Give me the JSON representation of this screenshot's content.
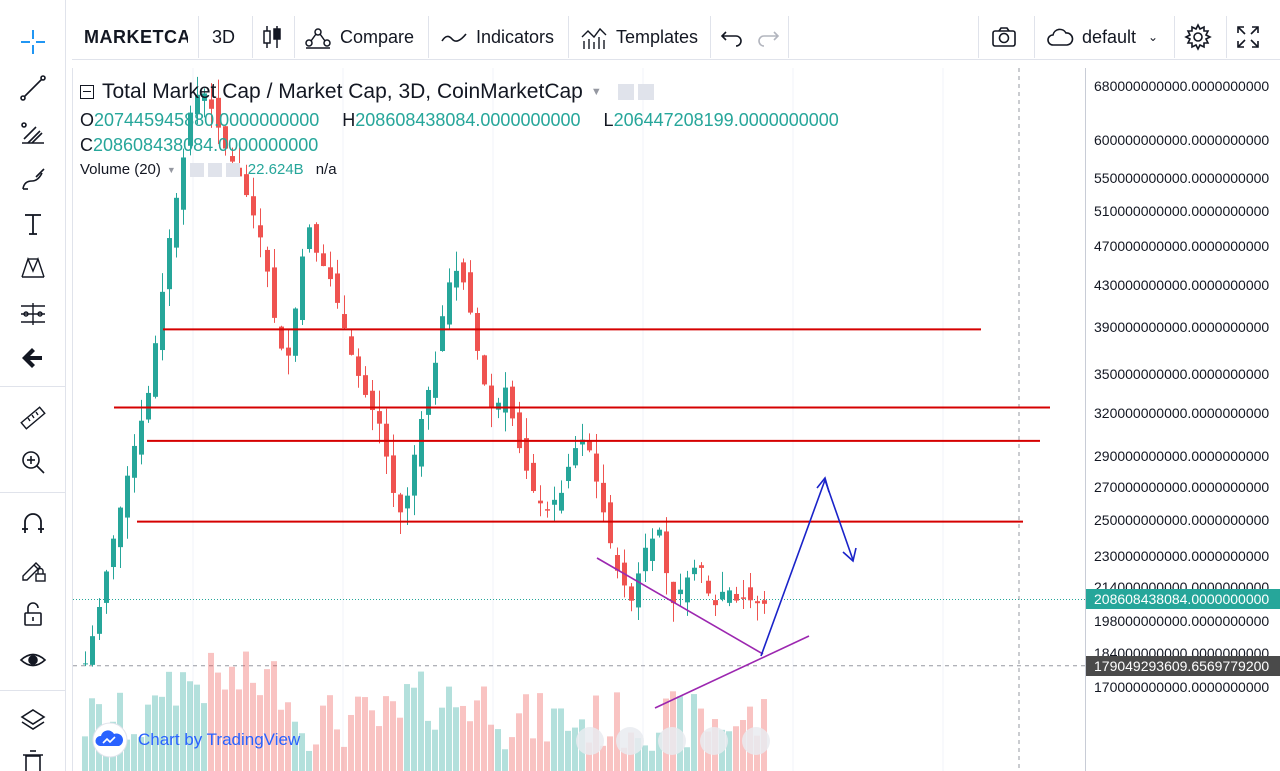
{
  "top_toolbar": {
    "symbol": "MARKETCAP",
    "interval": "3D",
    "compare_label": "Compare",
    "indicators_label": "Indicators",
    "templates_label": "Templates",
    "layout_label": "default"
  },
  "left_toolbar": {
    "tools": [
      "crosshair-icon",
      "trend-line-icon",
      "fib-icon",
      "brush-icon",
      "text-icon",
      "pattern-icon",
      "measure-lines-icon",
      "back-arrow-icon",
      "ruler-icon",
      "zoom-in-icon",
      "magnet-icon",
      "lock-drawing-icon",
      "unlock-icon",
      "eye-icon",
      "layers-icon",
      "trash-icon"
    ]
  },
  "legend": {
    "title": "Total Market Cap / Market Cap, 3D, CoinMarketCap",
    "open_key": "O",
    "open": "207445945880.0000000000",
    "high_key": "H",
    "high": "208608438084.0000000000",
    "low_key": "L",
    "low": "206447208199.0000000000",
    "close_key": "C",
    "close": "208608438084.0000000000",
    "volume_label": "Volume (20)",
    "volume_value": "22.624B",
    "volume_extra": "n/a"
  },
  "price_axis": {
    "labels": [
      "680000000000.0000000000",
      "600000000000.0000000000",
      "550000000000.0000000000",
      "510000000000.0000000000",
      "470000000000.0000000000",
      "430000000000.0000000000",
      "390000000000.0000000000",
      "350000000000.0000000000",
      "320000000000.0000000000",
      "290000000000.0000000000",
      "270000000000.0000000000",
      "250000000000.0000000000",
      "230000000000.0000000000",
      "214000000000.0000000000",
      "198000000000.0000000000",
      "184000000000.0000000000",
      "170000000000.0000000000"
    ],
    "current_price": "208608438084.0000000000",
    "crosshair_price": "179049293609.6569779200"
  },
  "watermark": {
    "text": "Chart by TradingView"
  },
  "colors": {
    "up": "#26a69a",
    "down": "#ef5350",
    "support_line": "#d50000",
    "triangle": "#9c27b0",
    "projection": "#1a23c9",
    "price_tag": "#26a69a",
    "crosshair_tag": "#4a4a4a"
  },
  "chart_data": {
    "type": "candlestick",
    "log_scale": true,
    "ylim": [
      160000000000,
      700000000000
    ],
    "horizontal_levels": [
      388000000000,
      324000000000,
      300000000000,
      249000000000
    ]
  }
}
